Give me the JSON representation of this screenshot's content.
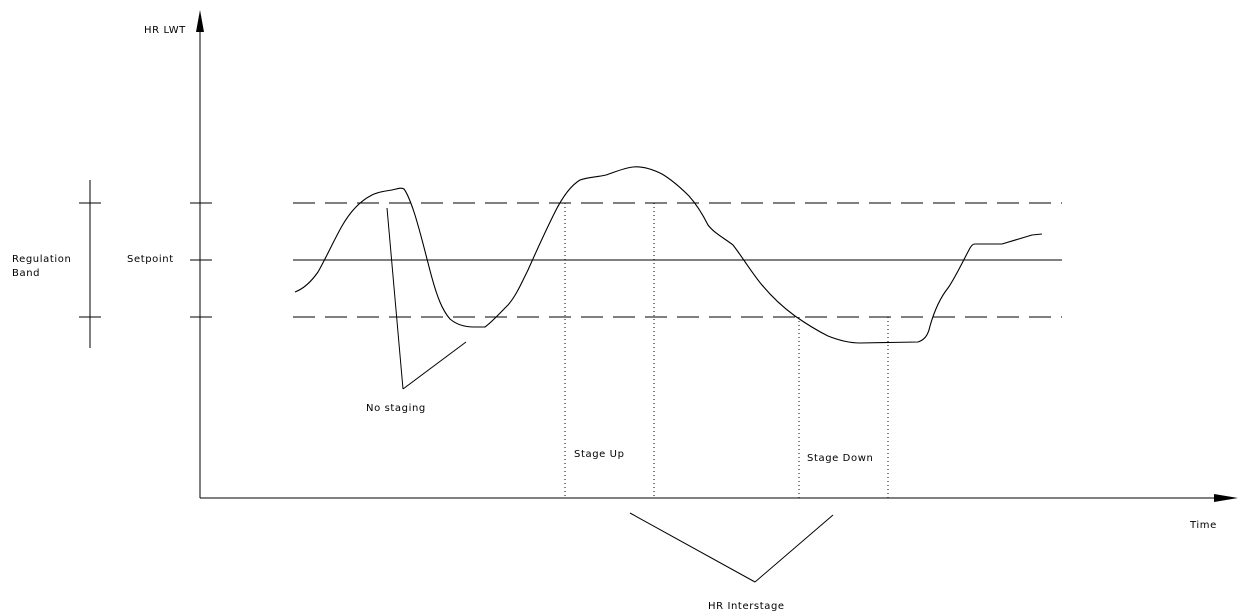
{
  "labels": {
    "y_axis": "HR LWT",
    "x_axis": "Time",
    "regulation_band_line1": "Regulation",
    "regulation_band_line2": "Band",
    "setpoint": "Setpoint",
    "no_staging": "No staging",
    "stage_up": "Stage Up",
    "stage_down": "Stage Down",
    "hr_interstage": "HR Interstage"
  }
}
